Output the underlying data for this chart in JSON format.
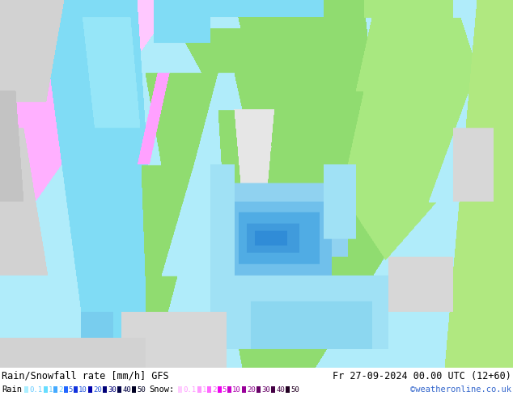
{
  "figsize": [
    6.34,
    4.9
  ],
  "dpi": 100,
  "title_left": "Rain/Snowfall rate [mm/h] GFS",
  "title_right": "Fr 27-09-2024 00.00 UTC (12+60)",
  "credit": "©weatheronline.co.uk",
  "bottom_bar_height": 35,
  "colors": {
    "ocean_light": [
      176,
      236,
      250
    ],
    "ocean_med": [
      128,
      220,
      245
    ],
    "land_green": [
      144,
      220,
      112
    ],
    "land_green2": [
      168,
      232,
      128
    ],
    "pink_snow": [
      255,
      176,
      255
    ],
    "pink_snow2": [
      240,
      160,
      240
    ],
    "gray_land": [
      210,
      210,
      210
    ],
    "gray_land2": [
      195,
      195,
      195
    ],
    "rain_1": [
      176,
      236,
      250
    ],
    "rain_2": [
      80,
      210,
      240
    ],
    "rain_3": [
      64,
      180,
      230
    ],
    "rain_4": [
      48,
      150,
      210
    ],
    "white": [
      255,
      255,
      255
    ]
  },
  "rain_legend": {
    "label": "Rain",
    "values": [
      "0.1",
      "1",
      "2",
      "5",
      "10",
      "20",
      "30",
      "40",
      "50"
    ],
    "colors": [
      "#aaeeff",
      "#66ddff",
      "#44aaff",
      "#2266ff",
      "#1133dd",
      "#0000aa",
      "#000077",
      "#000044",
      "#000022"
    ],
    "text_colors": [
      "#66ccff",
      "#66ccff",
      "#66ccff",
      "#2255dd",
      "#2255dd",
      "#2255dd",
      "#000077",
      "#000044",
      "#000022"
    ]
  },
  "snow_legend": {
    "label": "Snow:",
    "values": [
      "0.1",
      "1",
      "2",
      "5",
      "10",
      "20",
      "30",
      "40",
      "50"
    ],
    "colors": [
      "#ffccff",
      "#ff99ff",
      "#ff66ff",
      "#ee00ee",
      "#cc00cc",
      "#990099",
      "#660066",
      "#440044",
      "#220022"
    ],
    "text_colors": [
      "#ff99ff",
      "#ff99ff",
      "#ee66ee",
      "#dd00dd",
      "#aa00aa",
      "#880088",
      "#660066",
      "#440044",
      "#220022"
    ]
  }
}
